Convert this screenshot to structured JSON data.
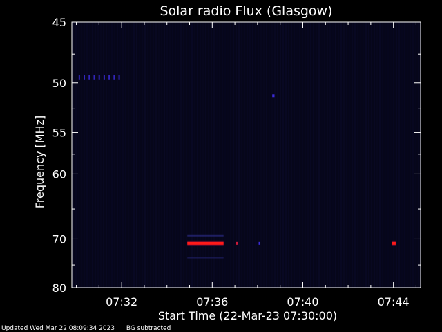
{
  "chart_data": {
    "type": "heatmap",
    "title": "Solar radio Flux (Glasgow)",
    "xlabel": "Start Time (22-Mar-23 07:30:00)",
    "ylabel": "Frequency [MHz]",
    "x_unit": "minutes after 07:30",
    "xlim": [
      -0.2,
      15.2
    ],
    "ylim": [
      45,
      80
    ],
    "x_ticks": [
      {
        "value": 2,
        "label": "07:32"
      },
      {
        "value": 6,
        "label": "07:36"
      },
      {
        "value": 10,
        "label": "07:40"
      },
      {
        "value": 14,
        "label": "07:44"
      }
    ],
    "y_ticks": [
      {
        "value": 45,
        "label": "45"
      },
      {
        "value": 50,
        "label": "50"
      },
      {
        "value": 55,
        "label": "55"
      },
      {
        "value": 60,
        "label": "60"
      },
      {
        "value": 70,
        "label": "70"
      },
      {
        "value": 80,
        "label": "80"
      }
    ],
    "background_color": "#06061a",
    "emissions": [
      {
        "t_start": 4.9,
        "t_end": 6.5,
        "freq": 70.8,
        "intensity": "high"
      },
      {
        "t_start": 7.05,
        "t_end": 7.12,
        "freq": 70.8,
        "intensity": "medium"
      },
      {
        "t_start": 8.05,
        "t_end": 8.12,
        "freq": 70.8,
        "intensity": "low"
      },
      {
        "t_start": 13.95,
        "t_end": 14.1,
        "freq": 70.8,
        "intensity": "high"
      },
      {
        "t_start": 8.65,
        "t_end": 8.75,
        "freq": 51.2,
        "intensity": "low"
      }
    ],
    "faint_band": {
      "t_start": 0.1,
      "t_end": 2.0,
      "freq": 49.5
    }
  },
  "footer": {
    "updated": "Updated Wed Mar 22 08:09:34 2023",
    "note": "BG subtracted"
  },
  "colors": {
    "axis": "#ffffff",
    "high": "#ff1a1a",
    "medium": "#cc1a3a",
    "low": "#3b2bd6"
  }
}
